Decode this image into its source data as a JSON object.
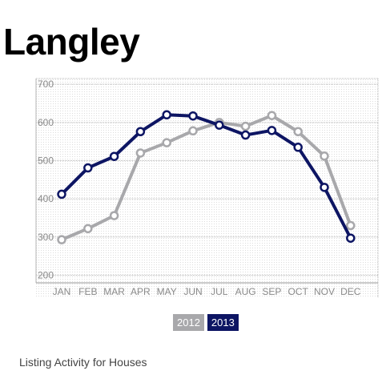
{
  "title": "Langley",
  "subtitle": "Listing Activity for Houses",
  "chart_data": {
    "type": "line",
    "title": "Langley",
    "subtitle": "Listing Activity for Houses",
    "categories": [
      "JAN",
      "FEB",
      "MAR",
      "APR",
      "MAY",
      "JUN",
      "JUL",
      "AUG",
      "SEP",
      "OCT",
      "NOV",
      "DEC"
    ],
    "y_ticks": [
      200,
      300,
      400,
      500,
      600,
      700
    ],
    "ylim": [
      180,
      715
    ],
    "grid": true,
    "legend_position": "bottom-center",
    "series": [
      {
        "name": "2012",
        "color": "#a8a8ab",
        "values": [
          293,
          322,
          356,
          520,
          547,
          578,
          600,
          590,
          618,
          576,
          512,
          330
        ]
      },
      {
        "name": "2013",
        "color": "#0d1563",
        "values": [
          412,
          481,
          511,
          576,
          620,
          617,
          593,
          567,
          579,
          535,
          430,
          297
        ]
      }
    ]
  }
}
